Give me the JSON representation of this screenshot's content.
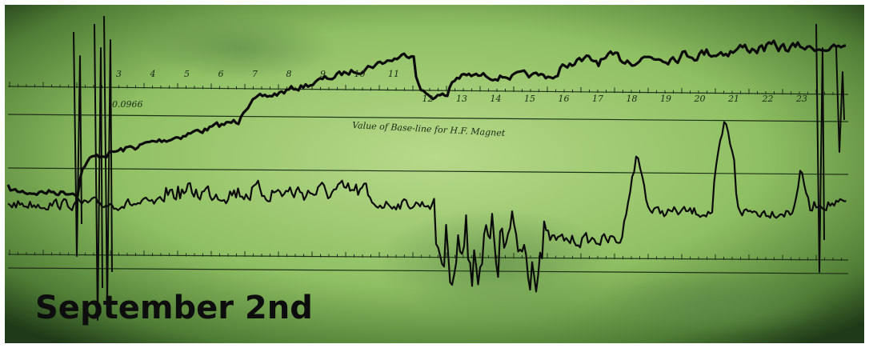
{
  "caption": "September 2nd",
  "baseline_value": "0.0966",
  "note": "Value of Base-line for H.F. Magnet",
  "hour_labels": [
    "3",
    "4",
    "5",
    "6",
    "7",
    "8",
    "9",
    "10",
    "11",
    "12",
    "13",
    "14",
    "15",
    "16",
    "17",
    "18",
    "19",
    "20",
    "21",
    "22",
    "23"
  ]
}
